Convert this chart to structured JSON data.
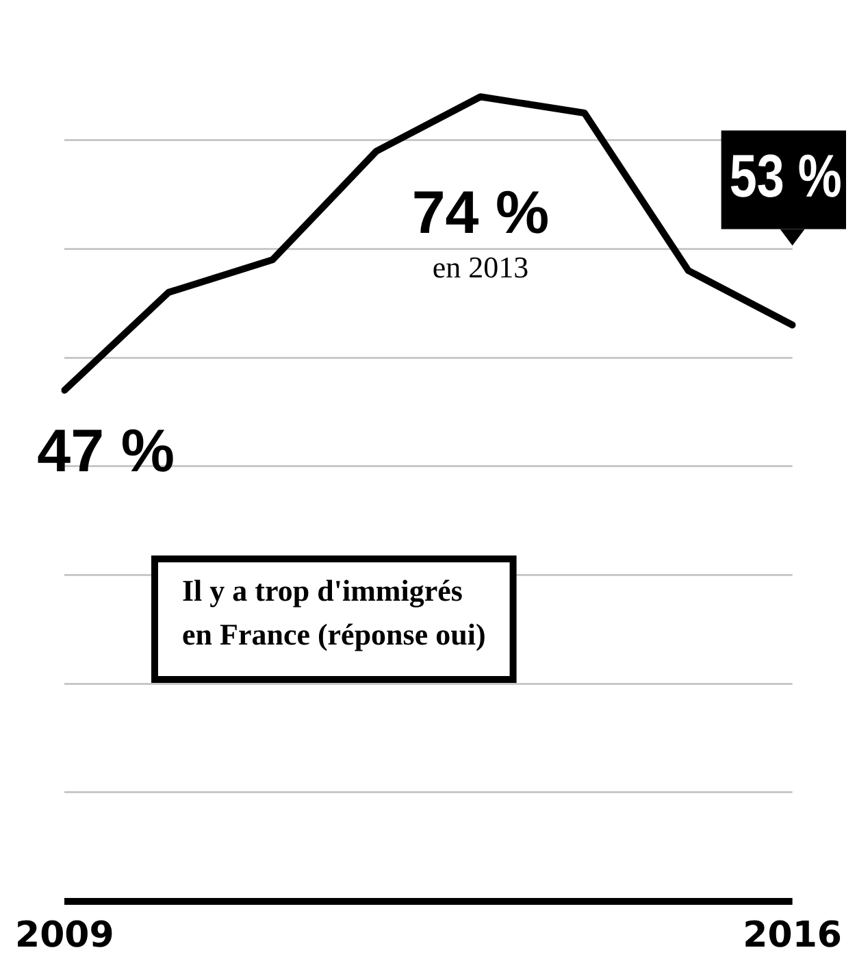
{
  "chart_data": {
    "type": "line",
    "categories": [
      "2009",
      null,
      null,
      null,
      null,
      null,
      null,
      "2016"
    ],
    "series": [
      {
        "color": "#000000",
        "values": [
          47,
          56,
          59,
          69,
          74,
          72.5,
          58,
          53
        ],
        "value_labels": [
          "47 %",
          null,
          null,
          null,
          "74 %",
          null,
          null,
          "53 %"
        ]
      }
    ],
    "yticks": [
      {
        "value": 0,
        "label": null
      },
      {
        "value": 10,
        "label": null
      },
      {
        "value": 20,
        "label": null
      },
      {
        "value": 30,
        "label": null
      },
      {
        "value": 40,
        "label": null
      },
      {
        "value": 50,
        "label": null
      },
      {
        "value": 60,
        "label": null
      },
      {
        "value": 70,
        "label": null
      }
    ],
    "grid": "y",
    "tick_labels": "x",
    "marker": "none",
    "line_style": "solid",
    "legend": false,
    "annotations": [
      "en 2013",
      "Il y a trop d'immigrés\nen France (réponse oui)"
    ]
  }
}
